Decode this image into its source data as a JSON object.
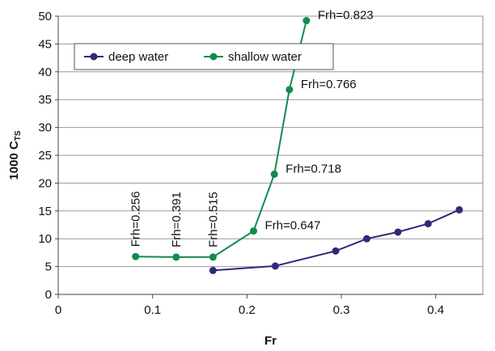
{
  "chart_data": {
    "type": "line",
    "xlabel": "Fr",
    "ylabel": "1000 C",
    "ylabel_subscript": "TS",
    "xlim": [
      0,
      0.45
    ],
    "ylim": [
      0,
      50
    ],
    "x_ticks": [
      0,
      0.1,
      0.2,
      0.3,
      0.4
    ],
    "x_tick_labels": [
      "0",
      "0.1",
      "0.2",
      "0.3",
      "0.4"
    ],
    "y_ticks": [
      0,
      5,
      10,
      15,
      20,
      25,
      30,
      35,
      40,
      45,
      50
    ],
    "y_tick_labels": [
      "0",
      "5",
      "10",
      "15",
      "20",
      "25",
      "30",
      "35",
      "40",
      "45",
      "50"
    ],
    "grid": true,
    "legend_position": "top-left",
    "series": [
      {
        "name": "deep water",
        "color": "#2e2a78",
        "x": [
          0.164,
          0.23,
          0.294,
          0.327,
          0.36,
          0.392,
          0.425
        ],
        "y": [
          4.3,
          5.1,
          7.8,
          10.0,
          11.2,
          12.7,
          15.2
        ]
      },
      {
        "name": "shallow water",
        "color": "#138a4e",
        "x": [
          0.082,
          0.125,
          0.164,
          0.207,
          0.229,
          0.245,
          0.263
        ],
        "y": [
          6.8,
          6.7,
          6.7,
          11.4,
          21.6,
          36.8,
          49.2
        ]
      }
    ],
    "annotations": [
      {
        "text": "Frh=0.256",
        "x": 0.082,
        "y": 6.8,
        "orientation": "vertical"
      },
      {
        "text": "Frh=0.391",
        "x": 0.125,
        "y": 6.7,
        "orientation": "vertical"
      },
      {
        "text": "Frh=0.515",
        "x": 0.164,
        "y": 6.7,
        "orientation": "vertical"
      },
      {
        "text": "Frh=0.647",
        "x": 0.207,
        "y": 11.4,
        "orientation": "horizontal"
      },
      {
        "text": "Frh=0.718",
        "x": 0.229,
        "y": 21.6,
        "orientation": "horizontal"
      },
      {
        "text": "Frh=0.766",
        "x": 0.245,
        "y": 36.8,
        "orientation": "horizontal"
      },
      {
        "text": "Frh=0.823",
        "x": 0.263,
        "y": 49.2,
        "orientation": "horizontal"
      }
    ]
  }
}
